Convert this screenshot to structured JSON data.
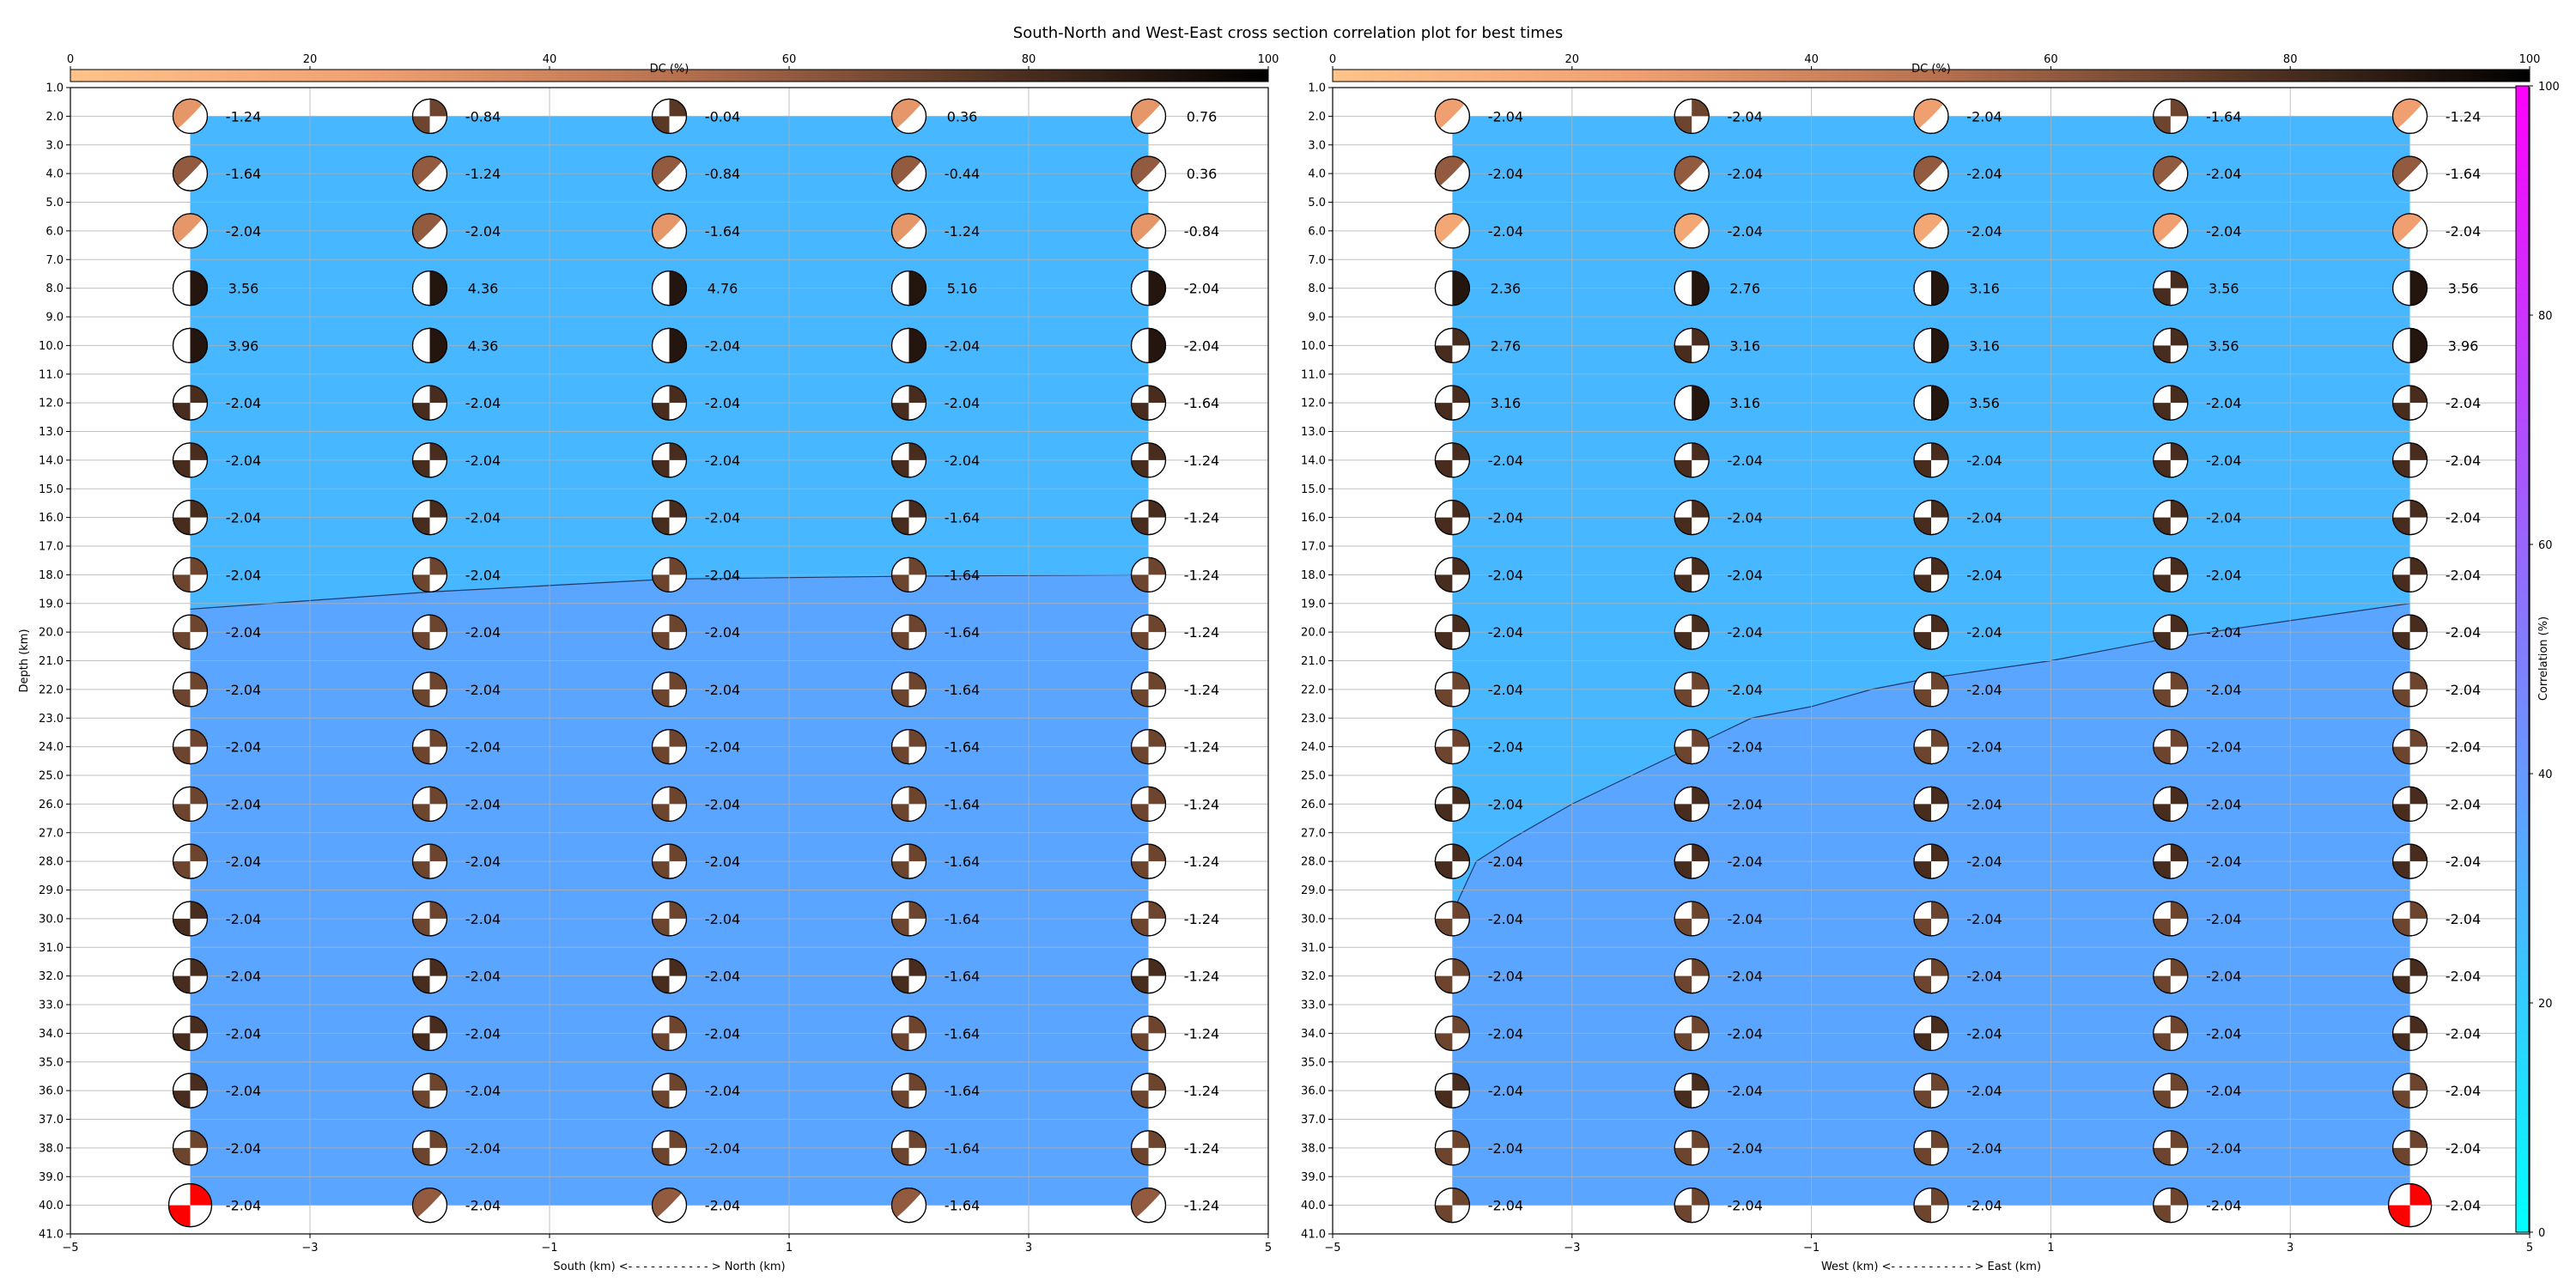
{
  "title": "South-North and West-East cross section correlation plot for best times",
  "dc_colorbar": {
    "label": "DC (%)",
    "ticks": [
      "0",
      "20",
      "40",
      "60",
      "80",
      "100"
    ],
    "range": [
      0,
      100
    ]
  },
  "corr_colorbar": {
    "label": "Correlation (%)",
    "ticks": [
      "0",
      "20",
      "40",
      "60",
      "80",
      "100"
    ],
    "range": [
      0,
      100
    ]
  },
  "chart_data": [
    {
      "type": "heatmap",
      "xlabel": "South (km) <- - - - - - - - - - - > North (km)",
      "ylabel": "Depth (km)",
      "xlim": [
        -5,
        5
      ],
      "ylim": [
        1,
        41
      ],
      "x_ticks": [
        "−5",
        "−3",
        "−1",
        "1",
        "3",
        "5"
      ],
      "y_ticks": [
        "1.0",
        "2.0",
        "3.0",
        "4.0",
        "5.0",
        "6.0",
        "7.0",
        "8.0",
        "9.0",
        "10.0",
        "11.0",
        "12.0",
        "13.0",
        "14.0",
        "15.0",
        "16.0",
        "17.0",
        "18.0",
        "19.0",
        "20.0",
        "21.0",
        "22.0",
        "23.0",
        "24.0",
        "25.0",
        "26.0",
        "27.0",
        "28.0",
        "29.0",
        "30.0",
        "31.0",
        "32.0",
        "33.0",
        "34.0",
        "35.0",
        "36.0",
        "37.0",
        "38.0",
        "39.0",
        "40.0",
        "41.0"
      ],
      "grid": true,
      "x": [
        -4,
        -2,
        0,
        2,
        4
      ],
      "depths": [
        2,
        4,
        6,
        8,
        10,
        12,
        14,
        16,
        18,
        20,
        22,
        24,
        26,
        28,
        30,
        32,
        34,
        36,
        38,
        40
      ],
      "values": [
        [
          "-1.24",
          "-0.84",
          "-0.04",
          "0.36",
          "0.76"
        ],
        [
          "-1.64",
          "-1.24",
          "-0.84",
          "-0.44",
          "0.36"
        ],
        [
          "-2.04",
          "-2.04",
          "-1.64",
          "-1.24",
          "-0.84"
        ],
        [
          "3.56",
          "4.36",
          "4.76",
          "5.16",
          "-2.04"
        ],
        [
          "3.96",
          "4.36",
          "-2.04",
          "-2.04",
          "-2.04"
        ],
        [
          "-2.04",
          "-2.04",
          "-2.04",
          "-2.04",
          "-1.64"
        ],
        [
          "-2.04",
          "-2.04",
          "-2.04",
          "-2.04",
          "-1.24"
        ],
        [
          "-2.04",
          "-2.04",
          "-2.04",
          "-1.64",
          "-1.24"
        ],
        [
          "-2.04",
          "-2.04",
          "-2.04",
          "-1.64",
          "-1.24"
        ],
        [
          "-2.04",
          "-2.04",
          "-2.04",
          "-1.64",
          "-1.24"
        ],
        [
          "-2.04",
          "-2.04",
          "-2.04",
          "-1.64",
          "-1.24"
        ],
        [
          "-2.04",
          "-2.04",
          "-2.04",
          "-1.64",
          "-1.24"
        ],
        [
          "-2.04",
          "-2.04",
          "-2.04",
          "-1.64",
          "-1.24"
        ],
        [
          "-2.04",
          "-2.04",
          "-2.04",
          "-1.64",
          "-1.24"
        ],
        [
          "-2.04",
          "-2.04",
          "-2.04",
          "-1.64",
          "-1.24"
        ],
        [
          "-2.04",
          "-2.04",
          "-2.04",
          "-1.64",
          "-1.24"
        ],
        [
          "-2.04",
          "-2.04",
          "-2.04",
          "-1.64",
          "-1.24"
        ],
        [
          "-2.04",
          "-2.04",
          "-2.04",
          "-1.64",
          "-1.24"
        ],
        [
          "-2.04",
          "-2.04",
          "-2.04",
          "-1.64",
          "-1.24"
        ],
        [
          "-2.04",
          "-2.04",
          "-2.04",
          "-1.64",
          "-1.24"
        ]
      ],
      "dc_percent": [
        [
          30,
          70,
          75,
          30,
          30
        ],
        [
          60,
          60,
          60,
          60,
          60
        ],
        [
          30,
          60,
          30,
          30,
          30
        ],
        [
          90,
          90,
          90,
          90,
          90
        ],
        [
          90,
          90,
          90,
          90,
          90
        ],
        [
          80,
          80,
          80,
          80,
          80
        ],
        [
          80,
          80,
          80,
          80,
          80
        ],
        [
          80,
          80,
          80,
          80,
          80
        ],
        [
          70,
          70,
          70,
          70,
          70
        ],
        [
          70,
          70,
          70,
          70,
          70
        ],
        [
          70,
          70,
          70,
          70,
          70
        ],
        [
          70,
          70,
          70,
          70,
          70
        ],
        [
          70,
          70,
          70,
          70,
          70
        ],
        [
          70,
          70,
          70,
          70,
          70
        ],
        [
          80,
          70,
          70,
          70,
          70
        ],
        [
          80,
          80,
          80,
          80,
          80
        ],
        [
          80,
          80,
          70,
          70,
          70
        ],
        [
          80,
          70,
          70,
          70,
          70
        ],
        [
          70,
          70,
          70,
          70,
          70
        ],
        [
          70,
          60,
          60,
          60,
          60
        ]
      ],
      "best_solution": {
        "x": -4,
        "depth": 40
      },
      "correlation_regions": [
        {
          "label": "upper",
          "correlation_percent": 28
        },
        {
          "label": "lower",
          "correlation_percent": 35
        }
      ],
      "boundary": {
        "x": [
          -4,
          -2,
          0,
          2,
          4
        ],
        "depth": [
          19.2,
          18.6,
          18.15,
          18.05,
          18.0
        ]
      }
    },
    {
      "type": "heatmap",
      "xlabel": "West (km) <- - - - - - - - - - - > East (km)",
      "ylabel": "",
      "xlim": [
        -5,
        5
      ],
      "ylim": [
        1,
        41
      ],
      "x_ticks": [
        "−5",
        "−3",
        "−1",
        "1",
        "3",
        "5"
      ],
      "grid": true,
      "x": [
        -4,
        -2,
        0,
        2,
        4
      ],
      "depths": [
        2,
        4,
        6,
        8,
        10,
        12,
        14,
        16,
        18,
        20,
        22,
        24,
        26,
        28,
        30,
        32,
        34,
        36,
        38,
        40
      ],
      "values": [
        [
          "-2.04",
          "-2.04",
          "-2.04",
          "-1.64",
          "-1.24"
        ],
        [
          "-2.04",
          "-2.04",
          "-2.04",
          "-2.04",
          "-1.64"
        ],
        [
          "-2.04",
          "-2.04",
          "-2.04",
          "-2.04",
          "-2.04"
        ],
        [
          "2.36",
          "2.76",
          "3.16",
          "3.56",
          "3.56"
        ],
        [
          "2.76",
          "3.16",
          "3.16",
          "3.56",
          "3.96"
        ],
        [
          "3.16",
          "3.16",
          "3.56",
          "-2.04",
          "-2.04"
        ],
        [
          "-2.04",
          "-2.04",
          "-2.04",
          "-2.04",
          "-2.04"
        ],
        [
          "-2.04",
          "-2.04",
          "-2.04",
          "-2.04",
          "-2.04"
        ],
        [
          "-2.04",
          "-2.04",
          "-2.04",
          "-2.04",
          "-2.04"
        ],
        [
          "-2.04",
          "-2.04",
          "-2.04",
          "-2.04",
          "-2.04"
        ],
        [
          "-2.04",
          "-2.04",
          "-2.04",
          "-2.04",
          "-2.04"
        ],
        [
          "-2.04",
          "-2.04",
          "-2.04",
          "-2.04",
          "-2.04"
        ],
        [
          "-2.04",
          "-2.04",
          "-2.04",
          "-2.04",
          "-2.04"
        ],
        [
          "-2.04",
          "-2.04",
          "-2.04",
          "-2.04",
          "-2.04"
        ],
        [
          "-2.04",
          "-2.04",
          "-2.04",
          "-2.04",
          "-2.04"
        ],
        [
          "-2.04",
          "-2.04",
          "-2.04",
          "-2.04",
          "-2.04"
        ],
        [
          "-2.04",
          "-2.04",
          "-2.04",
          "-2.04",
          "-2.04"
        ],
        [
          "-2.04",
          "-2.04",
          "-2.04",
          "-2.04",
          "-2.04"
        ],
        [
          "-2.04",
          "-2.04",
          "-2.04",
          "-2.04",
          "-2.04"
        ],
        [
          "-2.04",
          "-2.04",
          "-2.04",
          "-2.04",
          "-2.04"
        ]
      ],
      "dc_percent": [
        [
          25,
          70,
          25,
          70,
          25
        ],
        [
          60,
          60,
          60,
          60,
          60
        ],
        [
          20,
          20,
          20,
          25,
          25
        ],
        [
          90,
          90,
          90,
          80,
          90
        ],
        [
          80,
          80,
          90,
          80,
          90
        ],
        [
          80,
          90,
          90,
          80,
          80
        ],
        [
          80,
          80,
          80,
          80,
          80
        ],
        [
          80,
          80,
          80,
          80,
          80
        ],
        [
          80,
          80,
          80,
          80,
          80
        ],
        [
          80,
          80,
          80,
          80,
          80
        ],
        [
          70,
          70,
          70,
          70,
          70
        ],
        [
          70,
          70,
          70,
          70,
          70
        ],
        [
          80,
          80,
          80,
          80,
          80
        ],
        [
          80,
          80,
          80,
          80,
          80
        ],
        [
          70,
          70,
          70,
          70,
          70
        ],
        [
          70,
          70,
          70,
          70,
          80
        ],
        [
          70,
          70,
          80,
          70,
          80
        ],
        [
          80,
          80,
          70,
          70,
          70
        ],
        [
          70,
          70,
          70,
          70,
          70
        ],
        [
          70,
          70,
          70,
          70,
          70
        ]
      ],
      "best_solution": {
        "x": 4,
        "depth": 40
      },
      "correlation_regions": [
        {
          "label": "upper",
          "correlation_percent": 28
        },
        {
          "label": "lower",
          "correlation_percent": 35
        }
      ],
      "boundary": {
        "x": [
          -4,
          -3.8,
          -3.5,
          -3,
          -2.5,
          -2,
          -1.5,
          -1,
          -0.5,
          0,
          1,
          2,
          3,
          4
        ],
        "depth": [
          29.8,
          28.0,
          27.2,
          26.0,
          25.0,
          24.0,
          23.0,
          22.6,
          22.0,
          21.6,
          21.0,
          20.2,
          19.6,
          19.0
        ]
      }
    }
  ]
}
